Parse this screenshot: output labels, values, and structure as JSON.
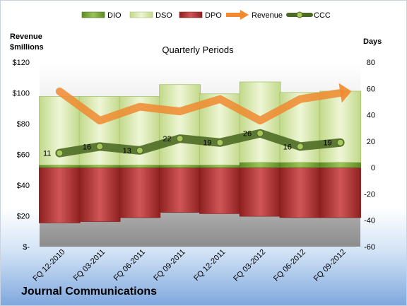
{
  "company": "Journal Communications",
  "chart_data": {
    "type": "bar",
    "title": "Quarterly Periods",
    "ylabel_left": [
      "Revenue",
      "$millions"
    ],
    "ylabel_right": "Days",
    "categories": [
      "FQ 12-2010",
      "FQ 03-2011",
      "FQ 06-2011",
      "FQ 09-2011",
      "FQ 12-2011",
      "FQ 03-2012",
      "FQ 06-2012",
      "FQ 09-2012"
    ],
    "left_axis": {
      "min": 0,
      "max": 120,
      "step": 20,
      "tick_labels": [
        "$-",
        "$20",
        "$40",
        "$60",
        "$80",
        "$100",
        "$120"
      ]
    },
    "right_axis": {
      "min": -60,
      "max": 80,
      "step": 20,
      "tick_labels": [
        "-60",
        "-40",
        "-20",
        "0",
        "20",
        "40",
        "60",
        "80"
      ]
    },
    "legend": [
      "DIO",
      "DSO",
      "DPO",
      "Revenue",
      "CCC"
    ],
    "legend_position": "top",
    "series": [
      {
        "name": "DIO",
        "type": "stacked-bar",
        "axis": "right",
        "color": "#7aa33a",
        "values": [
          2,
          2,
          2,
          2,
          2,
          4,
          4,
          4
        ]
      },
      {
        "name": "DSO",
        "type": "stacked-bar",
        "axis": "right",
        "color": "#d5e6a6",
        "values": [
          52,
          52,
          52,
          61,
          54,
          61,
          53,
          54
        ]
      },
      {
        "name": "DPO",
        "type": "negative-bar",
        "axis": "right",
        "color": "#b83a3a",
        "values": [
          -42,
          -41,
          -38,
          -34,
          -35,
          -37,
          -38,
          -38
        ]
      },
      {
        "name": "Revenue",
        "type": "line",
        "axis": "left",
        "color": "#f0892f",
        "values": [
          101,
          82,
          91,
          88,
          96,
          82,
          96,
          100
        ]
      },
      {
        "name": "CCC",
        "type": "line",
        "axis": "right",
        "color": "#5c7b2c",
        "values": [
          11,
          16,
          13,
          22,
          19,
          26,
          16,
          19
        ]
      }
    ]
  }
}
